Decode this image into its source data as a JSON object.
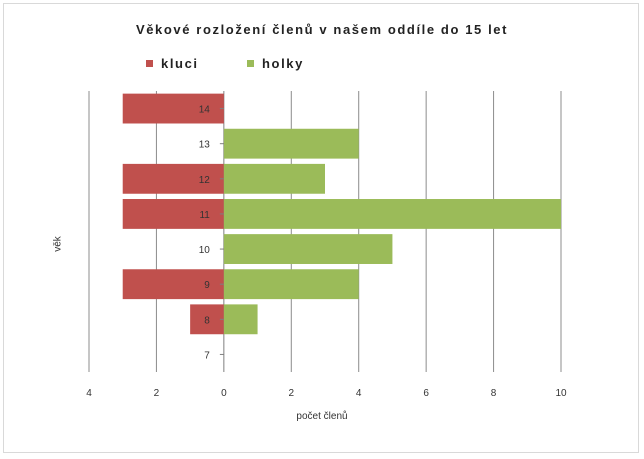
{
  "chart_data": {
    "type": "bar",
    "orientation": "horizontal",
    "title": "Věkové rozložení členů v našem oddíle do 15 let",
    "xlabel": "počet členů",
    "ylabel": "věk",
    "categories": [
      "7",
      "8",
      "9",
      "10",
      "11",
      "12",
      "13",
      "14"
    ],
    "series": [
      {
        "name": "kluci",
        "color": "#c0504d",
        "direction": "left",
        "values": [
          0,
          1,
          3,
          0,
          3,
          3,
          0,
          3
        ]
      },
      {
        "name": "holky",
        "color": "#9bbb59",
        "direction": "right",
        "values": [
          0,
          1,
          4,
          5,
          10,
          3,
          4,
          0
        ]
      }
    ],
    "xlim": [
      -4,
      10
    ],
    "x_tick_values": [
      -4,
      -2,
      0,
      2,
      4,
      6,
      8,
      10
    ],
    "x_tick_labels": [
      "4",
      "2",
      "0",
      "2",
      "4",
      "6",
      "8",
      "10"
    ],
    "grid": true,
    "legend_position": "top-left"
  }
}
